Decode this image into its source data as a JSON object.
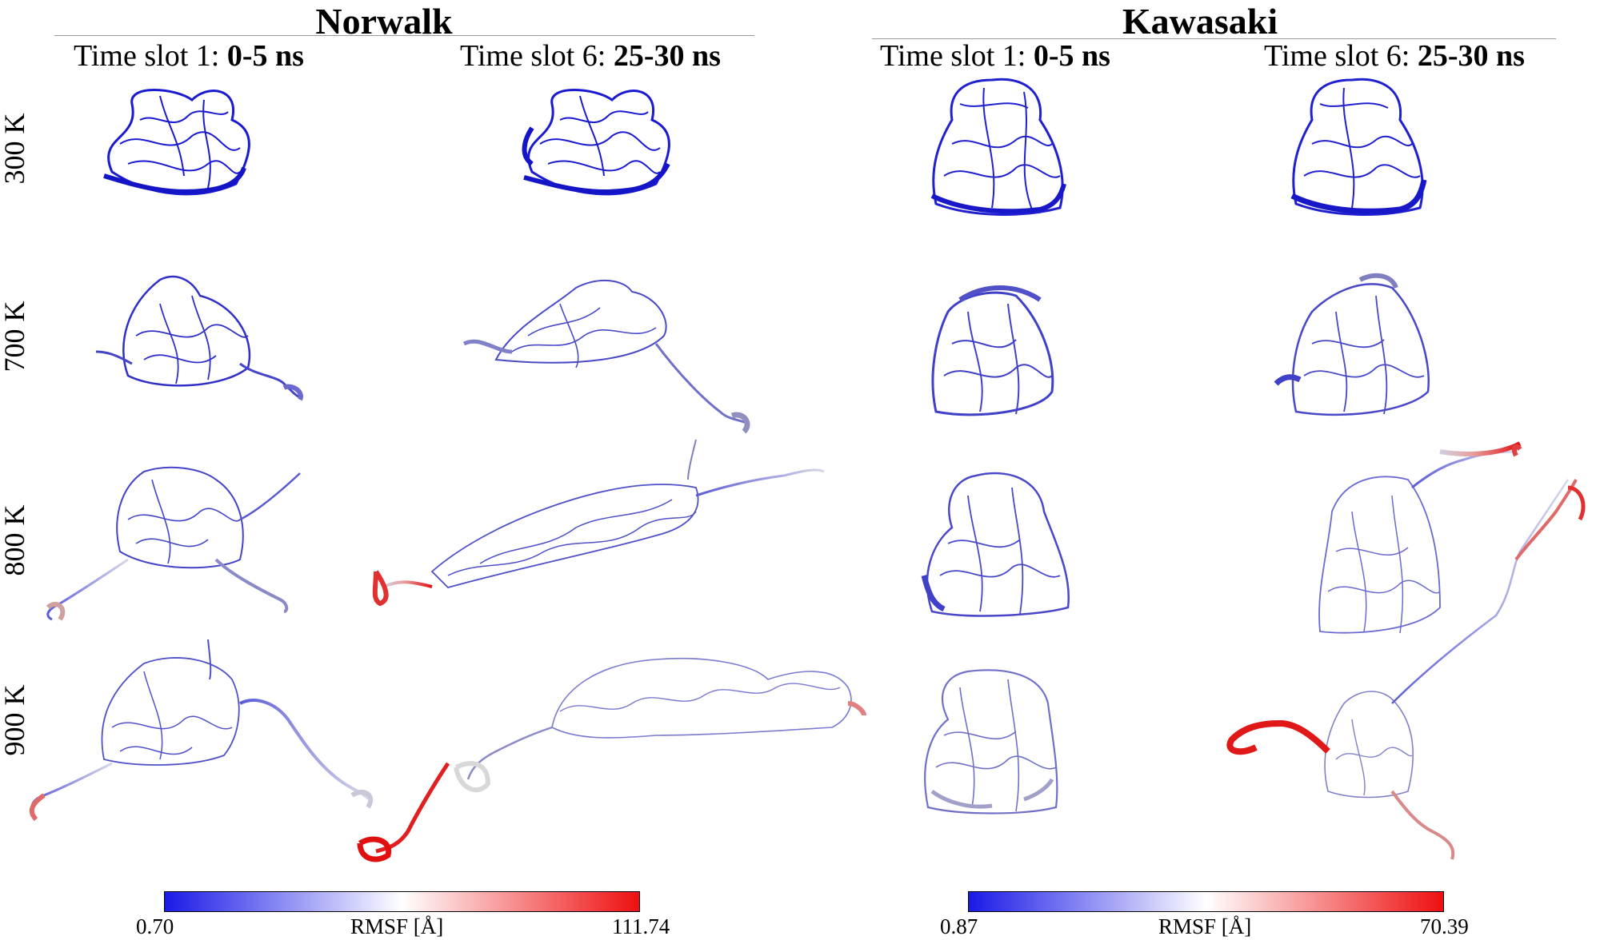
{
  "groups": [
    {
      "title": "Norwalk",
      "columns": [
        {
          "prefix": "Time slot 1: ",
          "range": "0-5 ns"
        },
        {
          "prefix": "Time slot 6: ",
          "range": "25-30 ns"
        }
      ],
      "colorbar": {
        "min": "0.70",
        "label": "RMSF [Å]",
        "max": "111.74"
      }
    },
    {
      "title": "Kawasaki",
      "columns": [
        {
          "prefix": "Time slot 1: ",
          "range": "0-5 ns"
        },
        {
          "prefix": "Time slot 6: ",
          "range": "25-30 ns"
        }
      ],
      "colorbar": {
        "min": "0.87",
        "label": "RMSF [Å]",
        "max": "70.39"
      }
    }
  ],
  "rows": [
    "300 K",
    "700 K",
    "800 K",
    "900 K"
  ],
  "colors": {
    "low": "#1010d0",
    "mid": "#ffffff",
    "high": "#ee1010",
    "mid_blue": "#6a6ad8",
    "pale_blue": "#a8a8e0"
  }
}
